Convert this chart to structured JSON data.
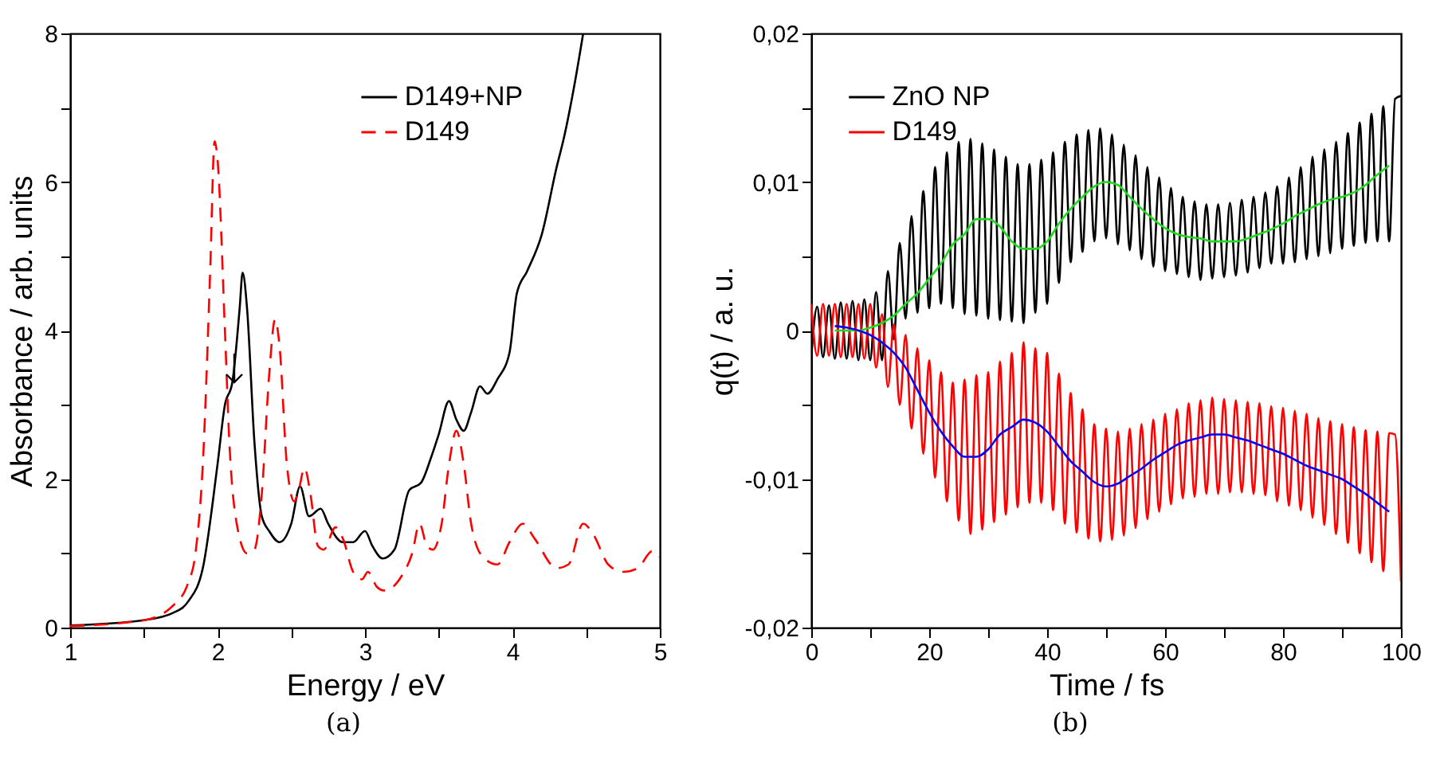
{
  "chart_data": [
    {
      "type": "line",
      "xlabel": "Energy / eV",
      "ylabel": "Absorbance / arb. units",
      "xlim": [
        1,
        5
      ],
      "ylim": [
        0,
        8
      ],
      "xticks": [
        1,
        {
          "value": 1.5,
          "label": null
        },
        2,
        {
          "value": 2.5,
          "label": null
        },
        3,
        {
          "value": 3.5,
          "label": null
        },
        4,
        {
          "value": 4.5,
          "label": null
        },
        5
      ],
      "yticks": [
        0,
        {
          "value": 1,
          "label": null
        },
        2,
        {
          "value": 3,
          "label": null
        },
        4,
        {
          "value": 5,
          "label": null
        },
        6,
        {
          "value": 7,
          "label": null
        },
        8
      ],
      "legend": "top right",
      "grid": false,
      "annotations": [
        "(a)"
      ],
      "series": [
        {
          "name": "D149+NP",
          "color": "#000000",
          "line_style": "solid",
          "x": [
            1.0,
            1.5,
            1.7,
            1.8,
            1.9,
            2.0,
            2.05,
            2.1,
            2.15,
            2.17,
            2.2,
            2.25,
            2.3,
            2.35,
            2.42,
            2.5,
            2.56,
            2.62,
            2.7,
            2.75,
            2.85,
            2.92,
            3.0,
            3.05,
            3.12,
            3.2,
            3.3,
            3.38,
            3.45,
            3.5,
            3.57,
            3.62,
            3.67,
            3.72,
            3.78,
            3.83,
            3.9,
            3.98,
            4.03,
            4.1,
            4.2,
            4.3,
            4.35,
            4.42,
            4.48
          ],
          "values": [
            0.03,
            0.1,
            0.2,
            0.35,
            0.8,
            2.2,
            3.0,
            3.3,
            4.3,
            4.78,
            4.3,
            2.5,
            1.5,
            1.3,
            1.15,
            1.4,
            1.9,
            1.5,
            1.6,
            1.4,
            1.15,
            1.15,
            1.3,
            1.1,
            0.93,
            1.05,
            1.85,
            1.95,
            2.3,
            2.6,
            3.05,
            2.8,
            2.65,
            2.9,
            3.25,
            3.15,
            3.35,
            3.7,
            4.5,
            4.8,
            5.3,
            6.2,
            6.6,
            7.3,
            8.0
          ]
        },
        {
          "name": "D149",
          "color": "#ff0000",
          "line_style": "dashed",
          "x": [
            1.0,
            1.5,
            1.7,
            1.8,
            1.85,
            1.9,
            1.95,
            1.98,
            2.0,
            2.05,
            2.08,
            2.13,
            2.2,
            2.25,
            2.3,
            2.35,
            2.39,
            2.42,
            2.47,
            2.52,
            2.55,
            2.59,
            2.63,
            2.68,
            2.72,
            2.8,
            2.85,
            2.92,
            2.98,
            3.02,
            3.08,
            3.13,
            3.25,
            3.32,
            3.37,
            3.42,
            3.46,
            3.52,
            3.57,
            3.62,
            3.67,
            3.72,
            3.8,
            3.9,
            3.98,
            4.07,
            4.15,
            4.3,
            4.38,
            4.48,
            4.55,
            4.65,
            4.75,
            4.85,
            4.95,
            5.0
          ],
          "values": [
            0.02,
            0.1,
            0.3,
            0.6,
            1.0,
            2.2,
            4.8,
            6.55,
            6.3,
            4.0,
            2.5,
            1.4,
            1.0,
            1.05,
            1.8,
            3.4,
            4.15,
            3.8,
            2.2,
            1.7,
            1.85,
            2.15,
            1.8,
            1.1,
            1.05,
            1.35,
            1.2,
            0.75,
            0.65,
            0.75,
            0.55,
            0.5,
            0.7,
            1.0,
            1.4,
            1.1,
            1.05,
            1.4,
            2.2,
            2.65,
            2.2,
            1.4,
            0.95,
            0.85,
            1.15,
            1.4,
            1.2,
            0.8,
            0.85,
            1.4,
            1.25,
            0.85,
            0.75,
            0.8,
            1.03,
            0.95
          ]
        }
      ]
    },
    {
      "type": "line",
      "xlabel": "Time / fs",
      "ylabel": "q(t) / a. u.",
      "xlim": [
        0,
        100
      ],
      "ylim": [
        -0.02,
        0.02
      ],
      "xticks": [
        0,
        {
          "value": 10,
          "label": null
        },
        20,
        {
          "value": 30,
          "label": null
        },
        40,
        {
          "value": 50,
          "label": null
        },
        60,
        {
          "value": 70,
          "label": null
        },
        80,
        {
          "value": 90,
          "label": null
        },
        100
      ],
      "yticks": [
        {
          "value": -0.02,
          "label": "-0,02"
        },
        {
          "value": -0.015,
          "label": null
        },
        {
          "value": -0.01,
          "label": "-0,01"
        },
        {
          "value": -0.005,
          "label": null
        },
        0,
        {
          "value": 0.005,
          "label": null
        },
        {
          "value": 0.01,
          "label": "0,01"
        },
        {
          "value": 0.015,
          "label": null
        },
        {
          "value": 0.02,
          "label": "0,02"
        }
      ],
      "legend": "top left",
      "grid": false,
      "annotations": [
        "(b)"
      ],
      "series": [
        {
          "name": "ZnO NP",
          "color": "#000000",
          "line_style": "solid",
          "x": [
            0,
            1,
            2,
            3,
            4,
            5,
            6,
            7,
            8,
            9,
            10,
            11,
            12,
            13,
            14,
            15,
            16,
            17,
            18,
            19,
            20,
            21,
            22,
            23,
            24,
            25,
            26,
            27,
            28,
            29,
            30,
            31,
            32,
            33,
            34,
            35,
            36,
            37,
            38,
            39,
            40,
            41,
            42,
            43,
            44,
            45,
            46,
            47,
            48,
            49,
            50,
            51,
            52,
            53,
            54,
            55,
            56,
            57,
            58,
            59,
            60,
            61,
            62,
            63,
            64,
            65,
            66,
            67,
            68,
            69,
            70,
            71,
            72,
            73,
            74,
            75,
            76,
            77,
            78,
            79,
            80,
            81,
            82,
            83,
            84,
            85,
            86,
            87,
            88,
            89,
            90,
            91,
            92,
            93,
            94,
            95,
            96,
            97,
            98,
            99,
            100
          ],
          "values": [
            -0.0018,
            0.0016,
            -0.0018,
            0.0017,
            -0.0019,
            0.0019,
            -0.0019,
            0.002,
            -0.002,
            0.0021,
            -0.002,
            0.0026,
            -0.002,
            0.004,
            -0.0006,
            0.0059,
            0.0008,
            0.0077,
            0.0012,
            0.0094,
            0.0015,
            0.011,
            0.0018,
            0.012,
            0.0015,
            0.0127,
            0.0011,
            0.0129,
            0.001,
            0.0126,
            0.0008,
            0.0122,
            0.0007,
            0.0117,
            0.0006,
            0.0112,
            0.0005,
            0.0112,
            0.0012,
            0.0115,
            0.0018,
            0.012,
            0.0032,
            0.0127,
            0.0046,
            0.0132,
            0.0053,
            0.0135,
            0.006,
            0.0136,
            0.0062,
            0.0132,
            0.0058,
            0.0125,
            0.0054,
            0.0118,
            0.0048,
            0.011,
            0.0043,
            0.0103,
            0.004,
            0.0096,
            0.0038,
            0.009,
            0.0036,
            0.0087,
            0.0034,
            0.0085,
            0.0035,
            0.0085,
            0.0036,
            0.0086,
            0.0037,
            0.0088,
            0.0039,
            0.009,
            0.0042,
            0.0093,
            0.0045,
            0.0097,
            0.0045,
            0.0103,
            0.0046,
            0.011,
            0.0048,
            0.0117,
            0.005,
            0.0122,
            0.0052,
            0.0127,
            0.0055,
            0.0133,
            0.0057,
            0.014,
            0.0059,
            0.0146,
            0.006,
            0.0151,
            0.006,
            0.0156,
            0.0158
          ]
        },
        {
          "name": "D149",
          "color": "#ff0000",
          "line_style": "solid",
          "x": [
            0,
            1,
            2,
            3,
            4,
            5,
            6,
            7,
            8,
            9,
            10,
            11,
            12,
            13,
            14,
            15,
            16,
            17,
            18,
            19,
            20,
            21,
            22,
            23,
            24,
            25,
            26,
            27,
            28,
            29,
            30,
            31,
            32,
            33,
            34,
            35,
            36,
            37,
            38,
            39,
            40,
            41,
            42,
            43,
            44,
            45,
            46,
            47,
            48,
            49,
            50,
            51,
            52,
            53,
            54,
            55,
            56,
            57,
            58,
            59,
            60,
            61,
            62,
            63,
            64,
            65,
            66,
            67,
            68,
            69,
            70,
            71,
            72,
            73,
            74,
            75,
            76,
            77,
            78,
            79,
            80,
            81,
            82,
            83,
            84,
            85,
            86,
            87,
            88,
            89,
            90,
            91,
            92,
            93,
            94,
            95,
            96,
            97,
            98,
            99,
            100
          ],
          "values": [
            0.0018,
            -0.0017,
            0.0018,
            -0.0017,
            0.0018,
            -0.0018,
            0.0018,
            -0.0018,
            0.0018,
            -0.0019,
            0.0018,
            -0.0025,
            0.0011,
            -0.0038,
            0.0004,
            -0.005,
            -0.0003,
            -0.0066,
            -0.0012,
            -0.0083,
            -0.002,
            -0.0099,
            -0.0028,
            -0.0115,
            -0.0035,
            -0.0128,
            -0.0033,
            -0.0137,
            -0.003,
            -0.0134,
            -0.0028,
            -0.0129,
            -0.0021,
            -0.0124,
            -0.0015,
            -0.0119,
            -0.0008,
            -0.0116,
            -0.0012,
            -0.0116,
            -0.0015,
            -0.0121,
            -0.0029,
            -0.013,
            -0.0042,
            -0.0136,
            -0.0053,
            -0.014,
            -0.0063,
            -0.0142,
            -0.0066,
            -0.0141,
            -0.0068,
            -0.0138,
            -0.0066,
            -0.0133,
            -0.0063,
            -0.0127,
            -0.006,
            -0.0122,
            -0.0056,
            -0.0117,
            -0.0053,
            -0.0113,
            -0.0049,
            -0.0112,
            -0.0047,
            -0.011,
            -0.0045,
            -0.011,
            -0.0046,
            -0.0109,
            -0.0047,
            -0.0109,
            -0.0048,
            -0.011,
            -0.0049,
            -0.0111,
            -0.0051,
            -0.0115,
            -0.0052,
            -0.0118,
            -0.0054,
            -0.0121,
            -0.0056,
            -0.0126,
            -0.0059,
            -0.0131,
            -0.0061,
            -0.0137,
            -0.0063,
            -0.0143,
            -0.0065,
            -0.015,
            -0.0067,
            -0.0156,
            -0.0068,
            -0.0162,
            -0.0069,
            -0.007,
            -0.0169
          ]
        },
        {
          "color": "#1fd81f",
          "line_style": "solid",
          "x": [
            4,
            6,
            8,
            10,
            12,
            14,
            16,
            18,
            20,
            22,
            24,
            26,
            28,
            30,
            32,
            34,
            36,
            38,
            40,
            42,
            44,
            46,
            48,
            50,
            52,
            54,
            56,
            58,
            60,
            62,
            64,
            66,
            68,
            70,
            72,
            74,
            76,
            78,
            80,
            82,
            84,
            86,
            88,
            90,
            92,
            94,
            96,
            98
          ],
          "values": [
            0,
            0,
            0,
            0.0002,
            0.0005,
            0.001,
            0.0018,
            0.0025,
            0.0035,
            0.0045,
            0.0058,
            0.0065,
            0.0075,
            0.0075,
            0.007,
            0.006,
            0.0055,
            0.0055,
            0.006,
            0.0072,
            0.0082,
            0.009,
            0.0097,
            0.01,
            0.0098,
            0.009,
            0.0082,
            0.0075,
            0.0069,
            0.0065,
            0.0063,
            0.0062,
            0.006,
            0.006,
            0.006,
            0.0062,
            0.0065,
            0.0068,
            0.0072,
            0.0077,
            0.0081,
            0.0085,
            0.0088,
            0.009,
            0.0093,
            0.0098,
            0.0105,
            0.0111
          ]
        },
        {
          "color": "#0000ff",
          "line_style": "solid",
          "x": [
            4,
            6,
            8,
            10,
            12,
            14,
            16,
            18,
            20,
            22,
            24,
            26,
            28,
            30,
            32,
            34,
            36,
            38,
            40,
            42,
            44,
            46,
            48,
            50,
            52,
            54,
            56,
            58,
            60,
            62,
            64,
            66,
            68,
            70,
            72,
            74,
            76,
            78,
            80,
            82,
            84,
            86,
            88,
            90,
            92,
            94,
            96,
            98
          ],
          "values": [
            0.0003,
            0.0002,
            0,
            -0.0003,
            -0.0008,
            -0.0015,
            -0.0025,
            -0.004,
            -0.0055,
            -0.0068,
            -0.0078,
            -0.0085,
            -0.0085,
            -0.008,
            -0.007,
            -0.0065,
            -0.006,
            -0.0062,
            -0.0068,
            -0.0078,
            -0.0088,
            -0.0095,
            -0.0102,
            -0.0105,
            -0.0103,
            -0.0098,
            -0.0093,
            -0.0087,
            -0.0082,
            -0.0077,
            -0.0074,
            -0.0072,
            -0.007,
            -0.007,
            -0.0072,
            -0.0074,
            -0.0077,
            -0.008,
            -0.0083,
            -0.0087,
            -0.0091,
            -0.0094,
            -0.0097,
            -0.01,
            -0.0105,
            -0.011,
            -0.0116,
            -0.0122
          ]
        }
      ]
    }
  ]
}
